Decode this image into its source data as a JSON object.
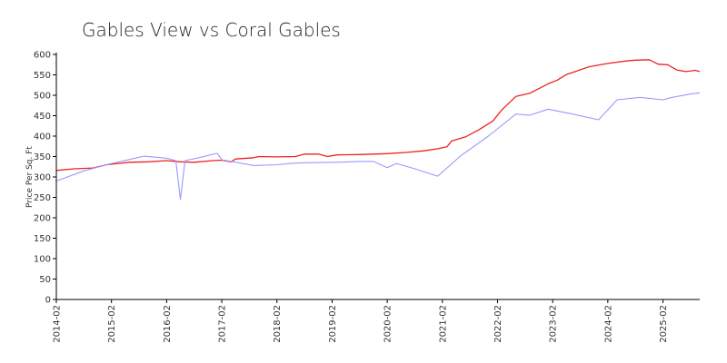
{
  "chart_data": {
    "type": "line",
    "title": "Gables View vs Coral Gables",
    "ylabel": "Price Per Sq. Ft",
    "xlabel": "",
    "ylim": [
      0,
      600
    ],
    "yticks": [
      0,
      50,
      100,
      150,
      200,
      250,
      300,
      350,
      400,
      450,
      500,
      550,
      600
    ],
    "xlim": [
      "2014-02",
      "2025-10"
    ],
    "xticks": [
      "2014-02",
      "2015-02",
      "2016-02",
      "2017-02",
      "2018-02",
      "2019-02",
      "2020-02",
      "2021-02",
      "2022-02",
      "2023-02",
      "2024-02",
      "2025-02"
    ],
    "grid": false,
    "legend": "none",
    "series": [
      {
        "color": "#ee2222",
        "points": [
          [
            "2014-02",
            316
          ],
          [
            "2014-06",
            320
          ],
          [
            "2014-10",
            322
          ],
          [
            "2015-01",
            330
          ],
          [
            "2015-06",
            336
          ],
          [
            "2015-10",
            337
          ],
          [
            "2016-02",
            340
          ],
          [
            "2016-05",
            337
          ],
          [
            "2016-08",
            336
          ],
          [
            "2016-12",
            340
          ],
          [
            "2017-02",
            341
          ],
          [
            "2017-04",
            337
          ],
          [
            "2017-05",
            344
          ],
          [
            "2017-09",
            347
          ],
          [
            "2017-10",
            350
          ],
          [
            "2018-02",
            349
          ],
          [
            "2018-06",
            350
          ],
          [
            "2018-08",
            356
          ],
          [
            "2018-11",
            356
          ],
          [
            "2019-01",
            350
          ],
          [
            "2019-03",
            354
          ],
          [
            "2019-08",
            355
          ],
          [
            "2020-02",
            357
          ],
          [
            "2020-06",
            360
          ],
          [
            "2020-10",
            364
          ],
          [
            "2021-01",
            369
          ],
          [
            "2021-03",
            374
          ],
          [
            "2021-04",
            388
          ],
          [
            "2021-07",
            398
          ],
          [
            "2021-10",
            416
          ],
          [
            "2022-01",
            437
          ],
          [
            "2022-03",
            465
          ],
          [
            "2022-06",
            497
          ],
          [
            "2022-09",
            505
          ],
          [
            "2023-01",
            528
          ],
          [
            "2023-03",
            537
          ],
          [
            "2023-05",
            551
          ],
          [
            "2023-10",
            570
          ],
          [
            "2024-02",
            578
          ],
          [
            "2024-06",
            584
          ],
          [
            "2024-08",
            586
          ],
          [
            "2024-11",
            587
          ],
          [
            "2025-01",
            576
          ],
          [
            "2025-03",
            575
          ],
          [
            "2025-05",
            562
          ],
          [
            "2025-07",
            558
          ],
          [
            "2025-09",
            561
          ],
          [
            "2025-10",
            558
          ]
        ]
      },
      {
        "color": "#9999ff",
        "points": [
          [
            "2014-02",
            290
          ],
          [
            "2014-08",
            315
          ],
          [
            "2015-02",
            333
          ],
          [
            "2015-06",
            343
          ],
          [
            "2015-09",
            351
          ],
          [
            "2016-02",
            346
          ],
          [
            "2016-04",
            340
          ],
          [
            "2016-05",
            245
          ],
          [
            "2016-06",
            340
          ],
          [
            "2016-09",
            347
          ],
          [
            "2017-01",
            358
          ],
          [
            "2017-02",
            342
          ],
          [
            "2017-09",
            328
          ],
          [
            "2018-02",
            330
          ],
          [
            "2018-06",
            334
          ],
          [
            "2018-09",
            335
          ],
          [
            "2019-03",
            336
          ],
          [
            "2019-08",
            338
          ],
          [
            "2019-11",
            338
          ],
          [
            "2020-02",
            323
          ],
          [
            "2020-04",
            333
          ],
          [
            "2020-08",
            320
          ],
          [
            "2021-01",
            302
          ],
          [
            "2021-06",
            352
          ],
          [
            "2021-12",
            400
          ],
          [
            "2022-06",
            454
          ],
          [
            "2022-09",
            451
          ],
          [
            "2023-01",
            466
          ],
          [
            "2023-06",
            455
          ],
          [
            "2023-12",
            440
          ],
          [
            "2024-04",
            489
          ],
          [
            "2024-09",
            495
          ],
          [
            "2025-02",
            489
          ],
          [
            "2025-04",
            495
          ],
          [
            "2025-08",
            503
          ],
          [
            "2025-10",
            506
          ]
        ]
      }
    ]
  }
}
